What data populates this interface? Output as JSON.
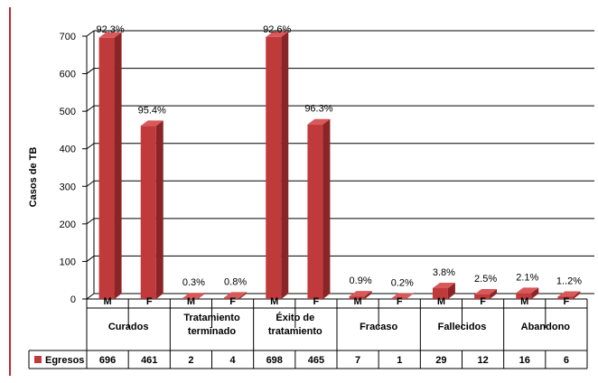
{
  "colors": {
    "bar": "#c0393b",
    "bar_side": "#8b2426",
    "bar_top": "#d9585a",
    "frame_line": "#c0282b",
    "grid": "#000000"
  },
  "chart_data": {
    "type": "bar",
    "title": "",
    "ylabel": "Casos de TB",
    "ylim": [
      0,
      700
    ],
    "yticks": [
      0,
      100,
      200,
      300,
      400,
      500,
      600,
      700
    ],
    "categories": [
      {
        "sub": "M",
        "group": "Curados"
      },
      {
        "sub": "F",
        "group": "Curados"
      },
      {
        "sub": "M",
        "group": "Tratamiento terminado"
      },
      {
        "sub": "F",
        "group": "Tratamiento terminado"
      },
      {
        "sub": "M",
        "group": "Éxito de tratamiento"
      },
      {
        "sub": "F",
        "group": "Éxito de tratamiento"
      },
      {
        "sub": "M",
        "group": "Fracaso"
      },
      {
        "sub": "F",
        "group": "Fracaso"
      },
      {
        "sub": "M",
        "group": "Fallecidos"
      },
      {
        "sub": "F",
        "group": "Fallecidos"
      },
      {
        "sub": "M",
        "group": "Abandono"
      },
      {
        "sub": "F",
        "group": "Abandono"
      }
    ],
    "groups": [
      {
        "lines": [
          "Curados"
        ]
      },
      {
        "lines": [
          "Tratamiento",
          "terminado"
        ]
      },
      {
        "lines": [
          "Éxito de",
          "tratamiento"
        ]
      },
      {
        "lines": [
          "Fracaso"
        ]
      },
      {
        "lines": [
          "Fallecidos"
        ]
      },
      {
        "lines": [
          "Abandono"
        ]
      }
    ],
    "series": [
      {
        "name": "Egresos",
        "values": [
          696,
          461,
          2,
          4,
          698,
          465,
          7,
          1,
          29,
          12,
          16,
          6
        ],
        "data_labels": [
          "92.3%",
          "95.4%",
          "0.3%",
          "0.8%",
          "92.6%",
          "96.3%",
          "0.9%",
          "0.2%",
          "3.8%",
          "2.5%",
          "2.1%",
          "1..2%"
        ]
      }
    ],
    "grid": true,
    "legend": "data-table-left"
  }
}
